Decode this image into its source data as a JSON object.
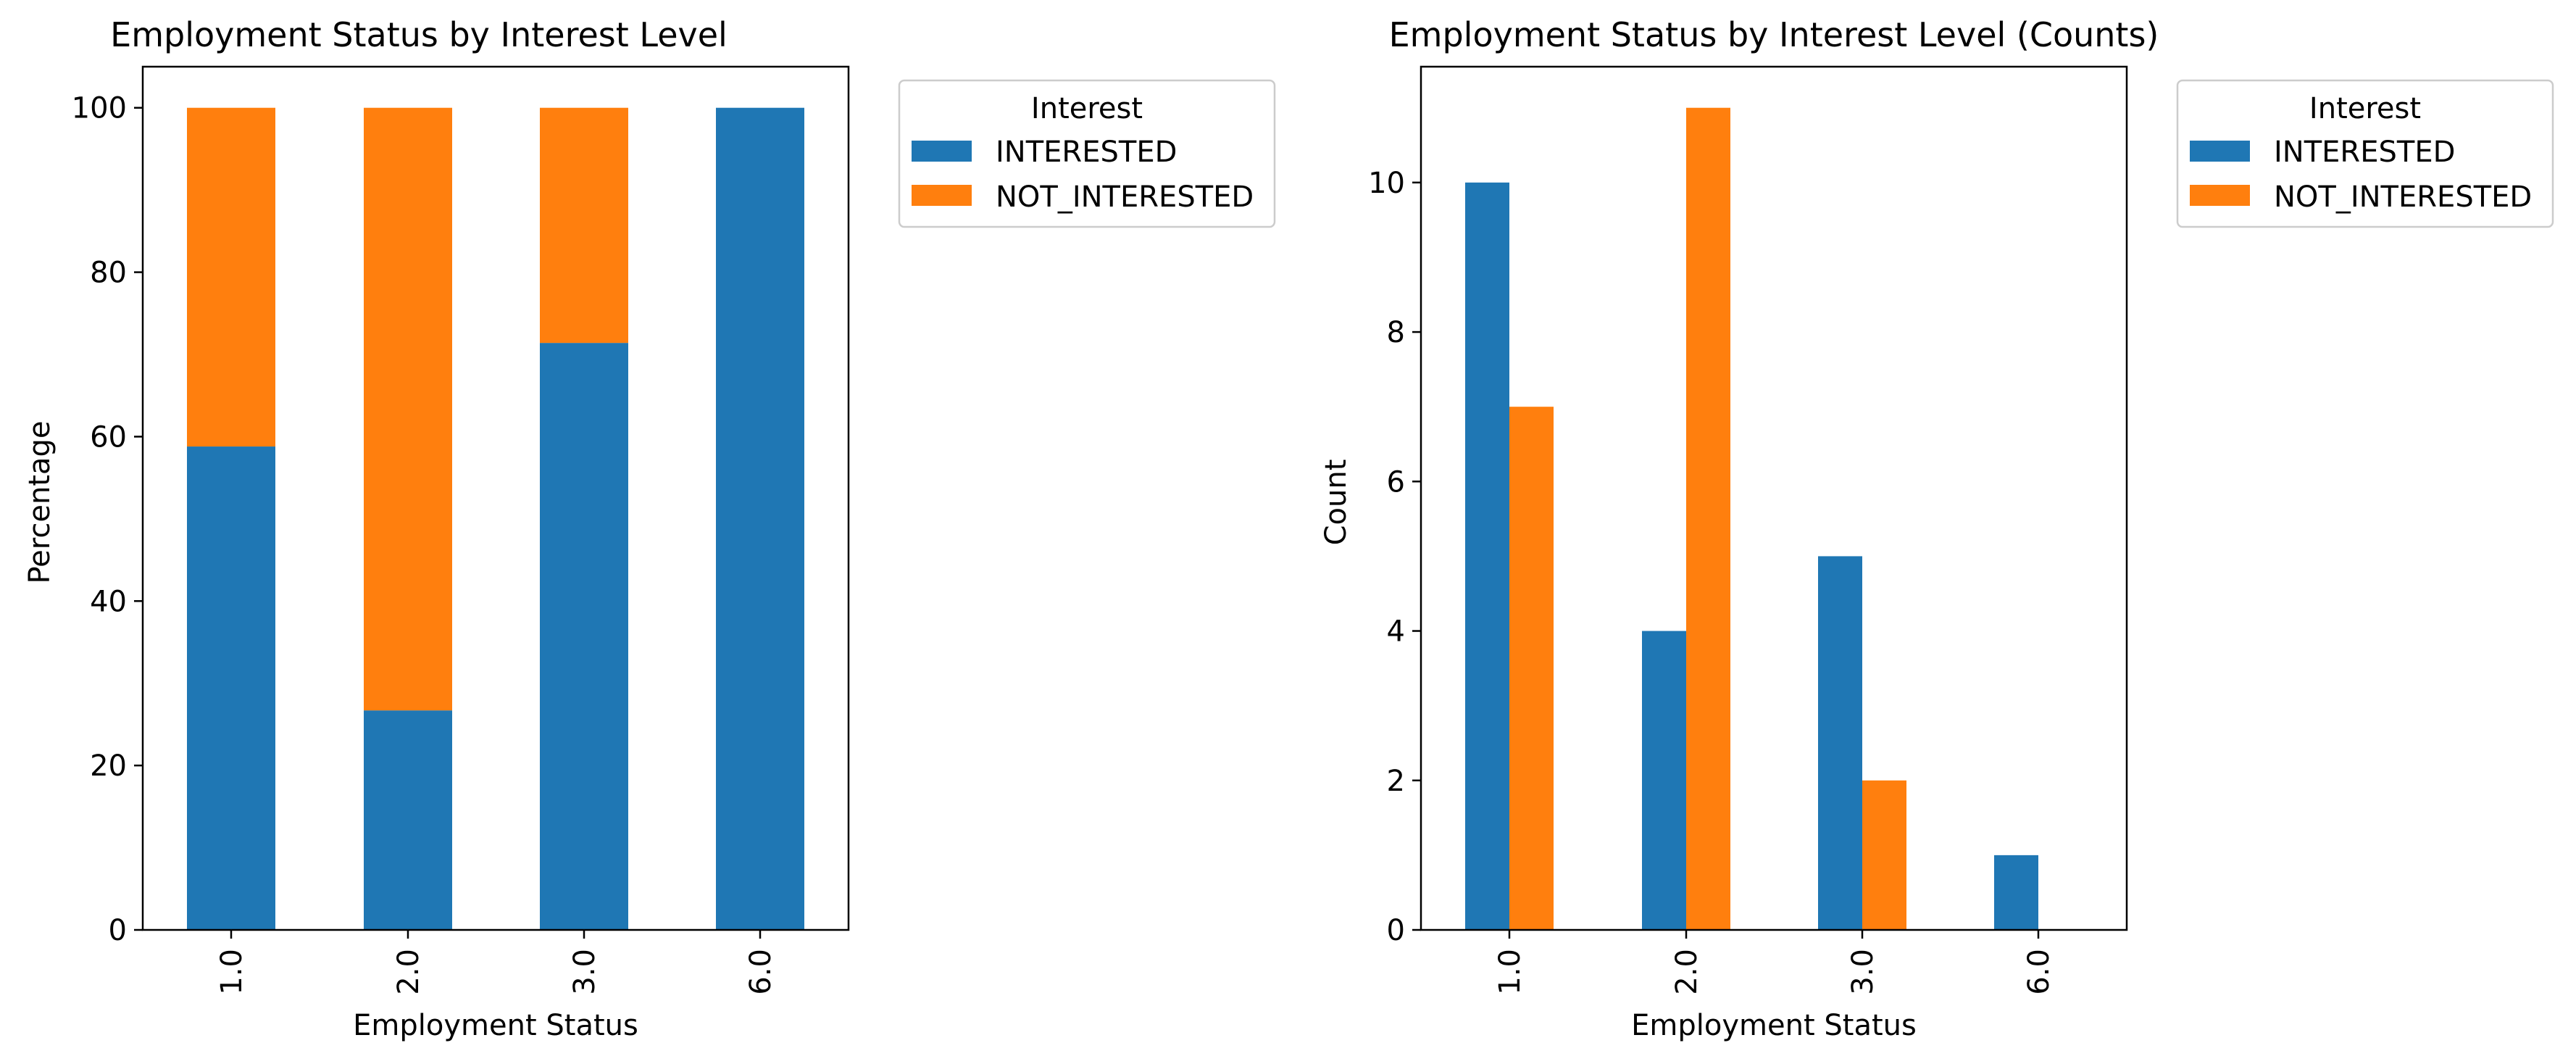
{
  "chart_data": [
    {
      "type": "bar",
      "stacked": true,
      "title": "Employment Status by Interest Level",
      "xlabel": "Employment Status",
      "ylabel": "Percentage",
      "categories": [
        "1.0",
        "2.0",
        "3.0",
        "6.0"
      ],
      "ylim": [
        0,
        105
      ],
      "yticks": [
        0,
        20,
        40,
        60,
        80,
        100
      ],
      "series": [
        {
          "name": "INTERESTED",
          "color": "#1f77b4",
          "values": [
            58.8,
            26.7,
            71.4,
            100.0
          ]
        },
        {
          "name": "NOT_INTERESTED",
          "color": "#ff7f0e",
          "values": [
            41.2,
            73.3,
            28.6,
            0.0
          ]
        }
      ],
      "legend": {
        "title": "Interest",
        "location": "outside upper right"
      },
      "grid": false
    },
    {
      "type": "bar",
      "stacked": false,
      "title": "Employment Status by Interest Level (Counts)",
      "xlabel": "Employment Status",
      "ylabel": "Count",
      "categories": [
        "1.0",
        "2.0",
        "3.0",
        "6.0"
      ],
      "ylim": [
        0,
        11.55
      ],
      "yticks": [
        0,
        2,
        4,
        6,
        8,
        10
      ],
      "series": [
        {
          "name": "INTERESTED",
          "color": "#1f77b4",
          "values": [
            10,
            4,
            5,
            1
          ]
        },
        {
          "name": "NOT_INTERESTED",
          "color": "#ff7f0e",
          "values": [
            7,
            11,
            2,
            0
          ]
        }
      ],
      "legend": {
        "title": "Interest",
        "location": "outside upper right"
      },
      "grid": false
    }
  ]
}
